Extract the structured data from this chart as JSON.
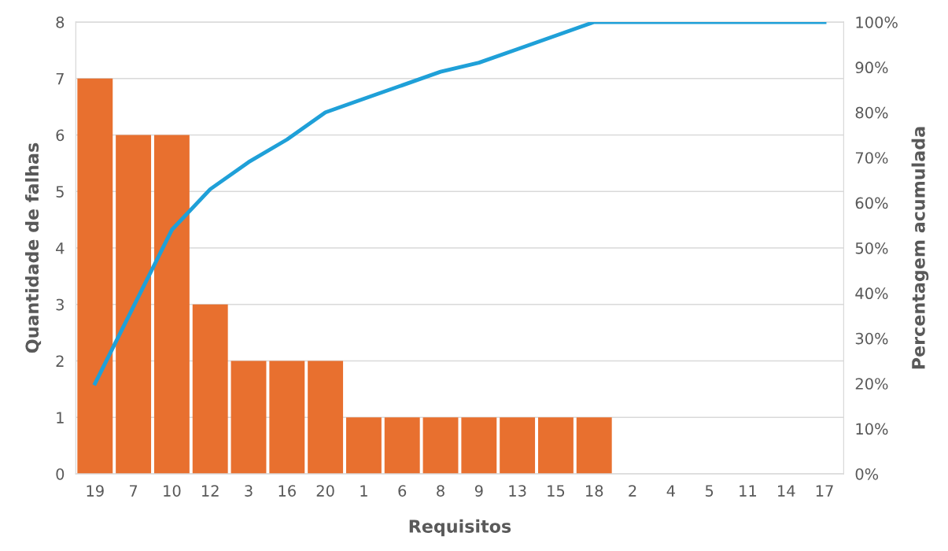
{
  "chart_data": {
    "type": "bar",
    "xlabel": "Requisitos",
    "ylabel": "Quantidade de falhas",
    "y2label": "Percentagem acumulada",
    "categories": [
      "19",
      "7",
      "10",
      "12",
      "3",
      "16",
      "20",
      "1",
      "6",
      "8",
      "9",
      "13",
      "15",
      "18",
      "2",
      "4",
      "5",
      "11",
      "14",
      "17"
    ],
    "series": [
      {
        "color": "#e8702f",
        "values": [
          7,
          6,
          6,
          3,
          2,
          2,
          2,
          1,
          1,
          1,
          1,
          1,
          1,
          1,
          0,
          0,
          0,
          0,
          0,
          0
        ]
      },
      {
        "type": "line",
        "axis": "y2",
        "color": "#1fa0d8",
        "values": [
          20,
          37,
          54,
          63,
          69,
          74,
          80,
          83,
          86,
          89,
          91,
          94,
          97,
          100,
          100,
          100,
          100,
          100,
          100,
          100
        ]
      }
    ],
    "ylim": [
      0,
      8
    ],
    "yticks": [
      0,
      1,
      2,
      3,
      4,
      5,
      6,
      7,
      8
    ],
    "y2lim": [
      0,
      100
    ],
    "y2ticks": [
      {
        "value": 0,
        "label": "0%"
      },
      {
        "value": 10,
        "label": "10%"
      },
      {
        "value": 20,
        "label": "20%"
      },
      {
        "value": 30,
        "label": "30%"
      },
      {
        "value": 40,
        "label": "40%"
      },
      {
        "value": 50,
        "label": "50%"
      },
      {
        "value": 60,
        "label": "60%"
      },
      {
        "value": 70,
        "label": "70%"
      },
      {
        "value": 80,
        "label": "80%"
      },
      {
        "value": 90,
        "label": "90%"
      },
      {
        "value": 100,
        "label": "100%"
      }
    ],
    "grid": "y",
    "legend": false,
    "marker": "none",
    "line_style": "solid"
  }
}
